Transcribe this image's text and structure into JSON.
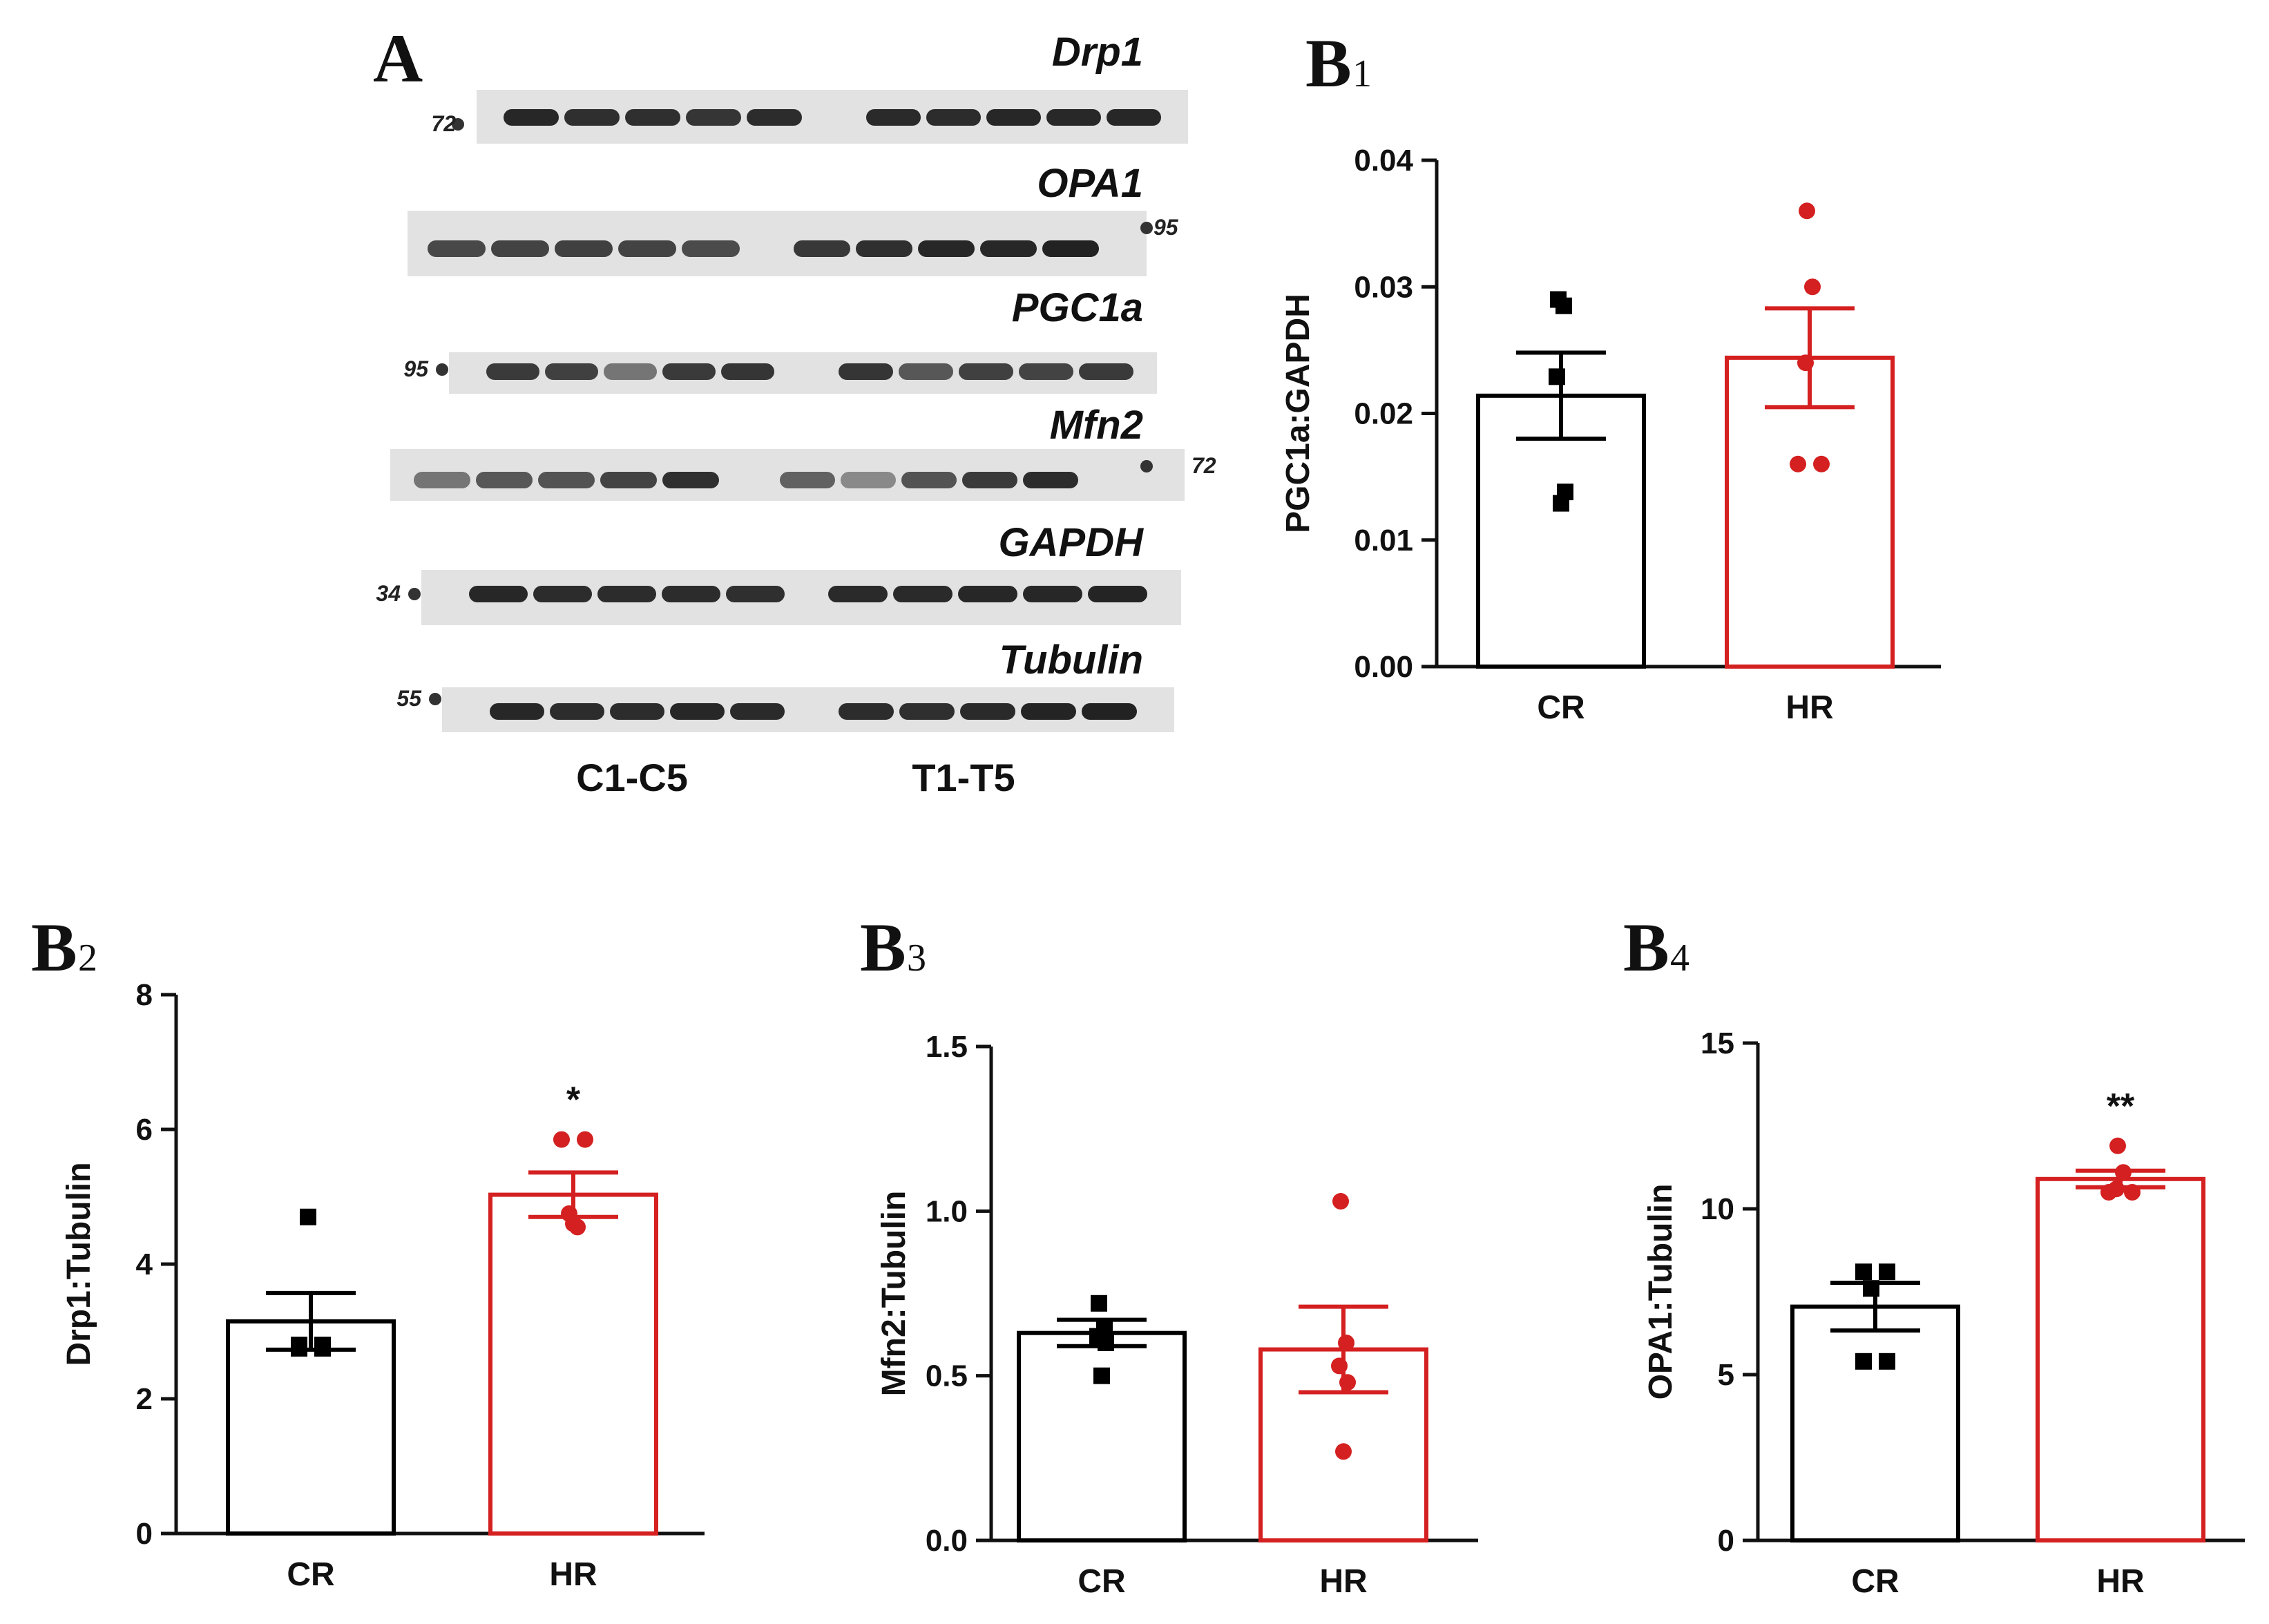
{
  "figure_colors": {
    "control": "#000000",
    "treatment": "#d42020",
    "blot_bg": "#e2e2e2",
    "band": "#1c1c1c"
  },
  "blot_panel": {
    "letter": "A",
    "group_labels": [
      "C1-C5",
      "T1-T5"
    ],
    "proteins": [
      {
        "name": "Drp1",
        "marker": "72",
        "marker_side": "left",
        "intensities": [
          0.95,
          0.9,
          0.9,
          0.88,
          0.92,
          0.93,
          0.92,
          0.95,
          0.94,
          0.95
        ]
      },
      {
        "name": "OPA1",
        "marker": "95",
        "marker_side": "right",
        "intensities": [
          0.78,
          0.8,
          0.82,
          0.8,
          0.76,
          0.86,
          0.9,
          0.95,
          0.95,
          0.97
        ]
      },
      {
        "name": "PGC1a",
        "marker": "95",
        "marker_side": "left",
        "intensities": [
          0.85,
          0.82,
          0.55,
          0.85,
          0.88,
          0.88,
          0.7,
          0.82,
          0.8,
          0.85
        ]
      },
      {
        "name": "Mfn2",
        "marker": "72",
        "marker_side": "right",
        "intensities": [
          0.55,
          0.7,
          0.72,
          0.8,
          0.9,
          0.65,
          0.45,
          0.72,
          0.85,
          0.92
        ]
      },
      {
        "name": "GAPDH",
        "marker": "34",
        "marker_side": "left",
        "intensities": [
          0.95,
          0.92,
          0.92,
          0.92,
          0.9,
          0.93,
          0.93,
          0.95,
          0.95,
          0.96
        ]
      },
      {
        "name": "Tubulin",
        "marker": "55",
        "marker_side": "left",
        "intensities": [
          0.95,
          0.92,
          0.92,
          0.95,
          0.93,
          0.92,
          0.9,
          0.93,
          0.96,
          0.97
        ]
      }
    ]
  },
  "chart_data": [
    {
      "id": "B1",
      "letter": "B",
      "sub": "1",
      "type": "bar",
      "categories": [
        "CR",
        "HR"
      ],
      "ylabel": "PGC1a:GAPDH",
      "ylim": [
        0,
        0.04
      ],
      "yticks": [
        0,
        0.01,
        0.02,
        0.03,
        0.04
      ],
      "ytick_labels": [
        "0.00",
        "0.01",
        "0.02",
        "0.03",
        "0.04"
      ],
      "series": [
        {
          "name": "CR",
          "mean": 0.0214,
          "sem": 0.0034,
          "points": [
            0.0129,
            0.0138,
            0.0229,
            0.0285,
            0.029
          ],
          "color": "#000000",
          "marker": "square"
        },
        {
          "name": "HR",
          "mean": 0.0244,
          "sem": 0.0039,
          "points": [
            0.016,
            0.016,
            0.024,
            0.03,
            0.036
          ],
          "color": "#d42020",
          "marker": "circle"
        }
      ],
      "significance": [
        "",
        ""
      ]
    },
    {
      "id": "B2",
      "letter": "B",
      "sub": "2",
      "type": "bar",
      "categories": [
        "CR",
        "HR"
      ],
      "ylabel": "Drp1:Tubulin",
      "ylim": [
        0,
        8
      ],
      "yticks": [
        0,
        2,
        4,
        6,
        8
      ],
      "ytick_labels": [
        "0",
        "2",
        "4",
        "6",
        "8"
      ],
      "series": [
        {
          "name": "CR",
          "mean": 3.15,
          "sem": 0.42,
          "points": [
            2.8,
            2.75,
            2.75,
            2.8,
            4.7
          ],
          "color": "#000000",
          "marker": "square"
        },
        {
          "name": "HR",
          "mean": 5.03,
          "sem": 0.33,
          "points": [
            4.6,
            4.55,
            4.75,
            5.85,
            5.85
          ],
          "color": "#d42020",
          "marker": "circle"
        }
      ],
      "significance": [
        "",
        "*"
      ]
    },
    {
      "id": "B3",
      "letter": "B",
      "sub": "3",
      "type": "bar",
      "categories": [
        "CR",
        "HR"
      ],
      "ylabel": "Mfn2:Tubulin",
      "ylim": [
        0,
        1.5
      ],
      "yticks": [
        0,
        0.5,
        1.0,
        1.5
      ],
      "ytick_labels": [
        "0.0",
        "0.5",
        "1.0",
        "1.5"
      ],
      "series": [
        {
          "name": "CR",
          "mean": 0.63,
          "sem": 0.04,
          "points": [
            0.5,
            0.6,
            0.62,
            0.64,
            0.72
          ],
          "color": "#000000",
          "marker": "square"
        },
        {
          "name": "HR",
          "mean": 0.58,
          "sem": 0.13,
          "points": [
            0.27,
            0.48,
            0.53,
            0.6,
            1.03
          ],
          "color": "#d42020",
          "marker": "circle"
        }
      ],
      "significance": [
        "",
        ""
      ]
    },
    {
      "id": "B4",
      "letter": "B",
      "sub": "4",
      "type": "bar",
      "categories": [
        "CR",
        "HR"
      ],
      "ylabel": "OPA1:Tubulin",
      "ylim": [
        0,
        15
      ],
      "yticks": [
        0,
        5,
        10,
        15
      ],
      "ytick_labels": [
        "0",
        "5",
        "10",
        "15"
      ],
      "series": [
        {
          "name": "CR",
          "mean": 7.05,
          "sem": 0.72,
          "points": [
            5.4,
            5.4,
            7.6,
            8.1,
            8.1
          ],
          "color": "#000000",
          "marker": "square"
        },
        {
          "name": "HR",
          "mean": 10.9,
          "sem": 0.25,
          "points": [
            10.5,
            10.5,
            10.6,
            11.1,
            11.9
          ],
          "color": "#d42020",
          "marker": "circle"
        }
      ],
      "significance": [
        "",
        "**"
      ]
    }
  ]
}
